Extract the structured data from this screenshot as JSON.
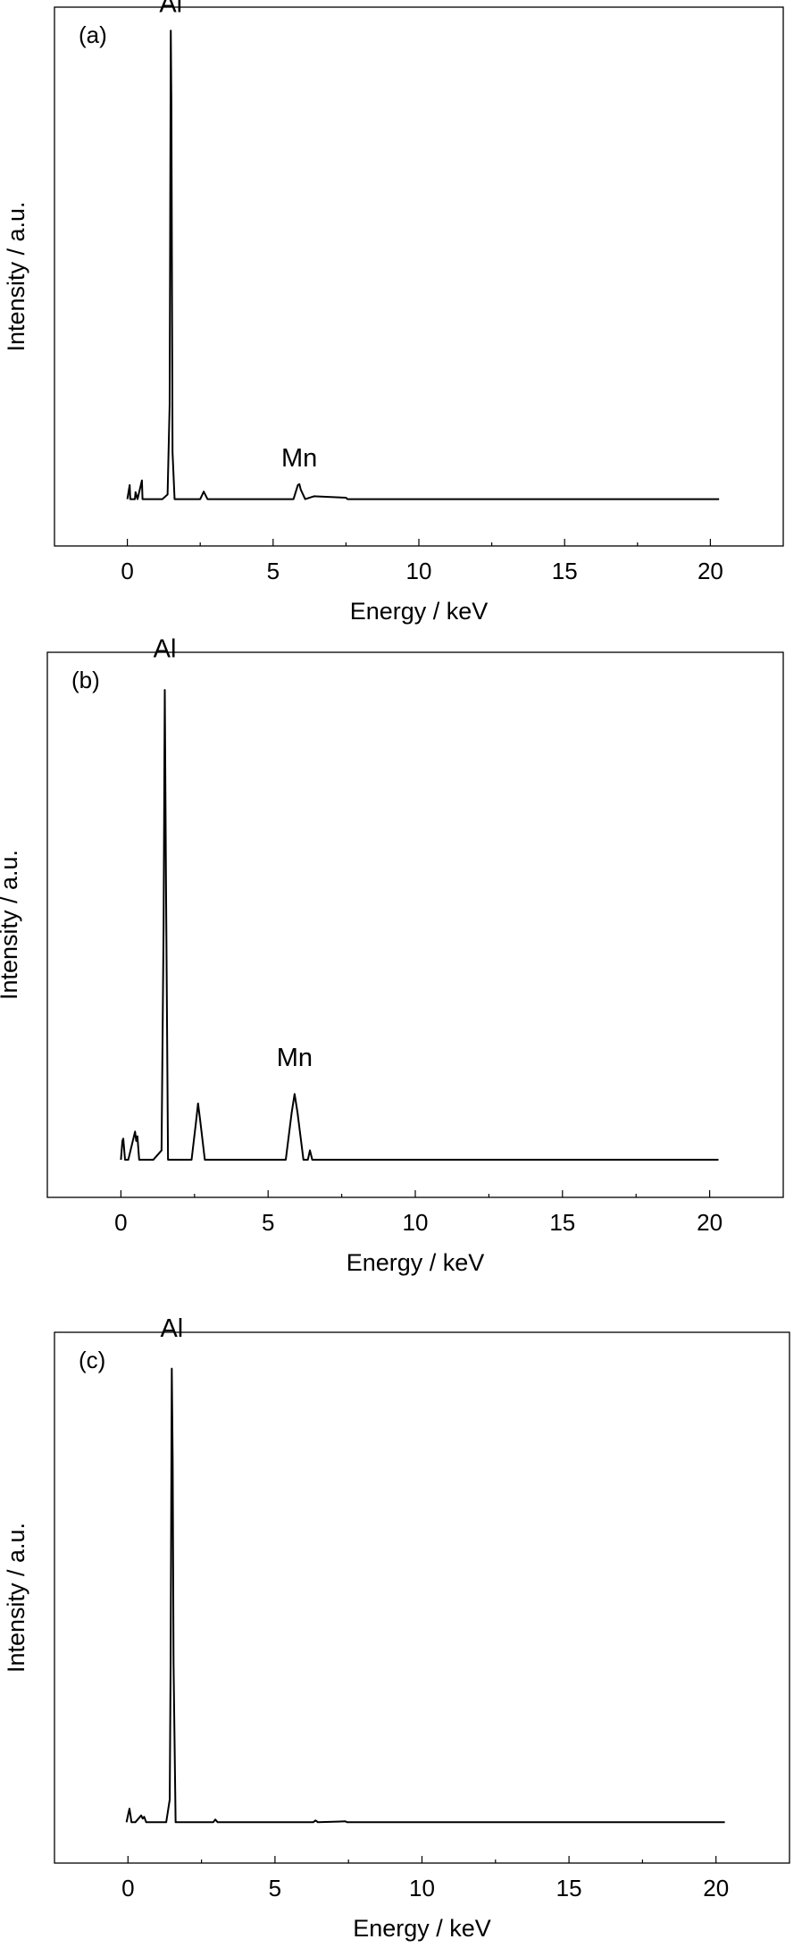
{
  "chart_data": [
    {
      "type": "line",
      "panel_label": "(a)",
      "xlabel": "Energy / keV",
      "ylabel": "Intensity / a.u.",
      "xlim": [
        -2.5,
        22.5
      ],
      "ylim": [
        -0.1,
        1.05
      ],
      "xticks": [
        0,
        5,
        10,
        15,
        20
      ],
      "yticks_shown": false,
      "grid": false,
      "annotations": [
        {
          "text": "Al",
          "x": 1.49,
          "y": 1.04
        },
        {
          "text": "Mn",
          "x": 5.9,
          "y": 0.07
        }
      ],
      "series": [
        {
          "x": [
            0.0,
            0.08,
            0.1,
            0.18,
            0.26,
            0.28,
            0.35,
            0.5,
            0.52,
            0.6,
            1.2,
            1.38,
            1.45,
            1.49,
            1.51,
            1.55,
            1.62,
            2.5,
            2.62,
            2.75,
            3.3,
            5.7,
            5.85,
            5.9,
            5.95,
            6.1,
            6.4,
            7.5,
            7.55,
            20.3
          ],
          "y": [
            0.0,
            0.03,
            0.0,
            0.0,
            0.0,
            0.015,
            0.0,
            0.04,
            0.0,
            0.0,
            0.0,
            0.01,
            0.2,
            1.0,
            0.85,
            0.1,
            0.0,
            0.0,
            0.016,
            0.0,
            0.0,
            0.0,
            0.03,
            0.032,
            0.02,
            0.0,
            0.006,
            0.003,
            0.0,
            0.0
          ]
        }
      ]
    },
    {
      "type": "line",
      "panel_label": "(b)",
      "xlabel": "Energy / keV",
      "ylabel": "Intensity / a.u.",
      "xlim": [
        -2.5,
        22.5
      ],
      "ylim": [
        -0.08,
        1.08
      ],
      "xticks": [
        0,
        5,
        10,
        15,
        20
      ],
      "yticks_shown": false,
      "grid": false,
      "annotations": [
        {
          "text": "Al",
          "x": 1.49,
          "y": 1.07
        },
        {
          "text": "Mn",
          "x": 5.9,
          "y": 0.2
        }
      ],
      "series": [
        {
          "x": [
            0.0,
            0.05,
            0.08,
            0.14,
            0.25,
            0.48,
            0.52,
            0.56,
            0.62,
            1.1,
            1.38,
            1.45,
            1.49,
            1.53,
            1.6,
            2.4,
            2.55,
            2.62,
            2.7,
            2.85,
            5.6,
            5.8,
            5.9,
            6.0,
            6.2,
            6.35,
            6.42,
            6.5,
            6.7,
            20.3
          ],
          "y": [
            0.0,
            0.04,
            0.045,
            0.0,
            0.0,
            0.06,
            0.04,
            0.05,
            0.0,
            0.0,
            0.02,
            0.5,
            1.0,
            0.6,
            0.0,
            0.0,
            0.08,
            0.12,
            0.08,
            0.0,
            0.0,
            0.1,
            0.14,
            0.1,
            0.0,
            0.0,
            0.02,
            0.0,
            0.0,
            0.0
          ]
        }
      ]
    },
    {
      "type": "line",
      "panel_label": "(c)",
      "xlabel": "Energy / keV",
      "ylabel": "Intensity / a.u.",
      "xlim": [
        -2.5,
        22.5
      ],
      "ylim": [
        -0.09,
        1.08
      ],
      "xticks": [
        0,
        5,
        10,
        15,
        20
      ],
      "yticks_shown": false,
      "grid": false,
      "annotations": [
        {
          "text": "Al",
          "x": 1.49,
          "y": 1.07
        }
      ],
      "series": [
        {
          "x": [
            -0.05,
            0.0,
            0.05,
            0.12,
            0.25,
            0.45,
            0.5,
            0.55,
            0.62,
            1.3,
            1.42,
            1.45,
            1.49,
            1.52,
            1.55,
            1.62,
            2.9,
            2.97,
            3.05,
            6.3,
            6.38,
            6.46,
            7.4,
            7.45,
            20.3
          ],
          "y": [
            0.0,
            0.015,
            0.03,
            0.0,
            0.0,
            0.015,
            0.008,
            0.012,
            0.0,
            0.0,
            0.05,
            0.35,
            1.0,
            0.8,
            0.35,
            0.0,
            0.0,
            0.006,
            0.0,
            0.0,
            0.004,
            0.0,
            0.002,
            0.0,
            0.0
          ]
        }
      ]
    }
  ]
}
